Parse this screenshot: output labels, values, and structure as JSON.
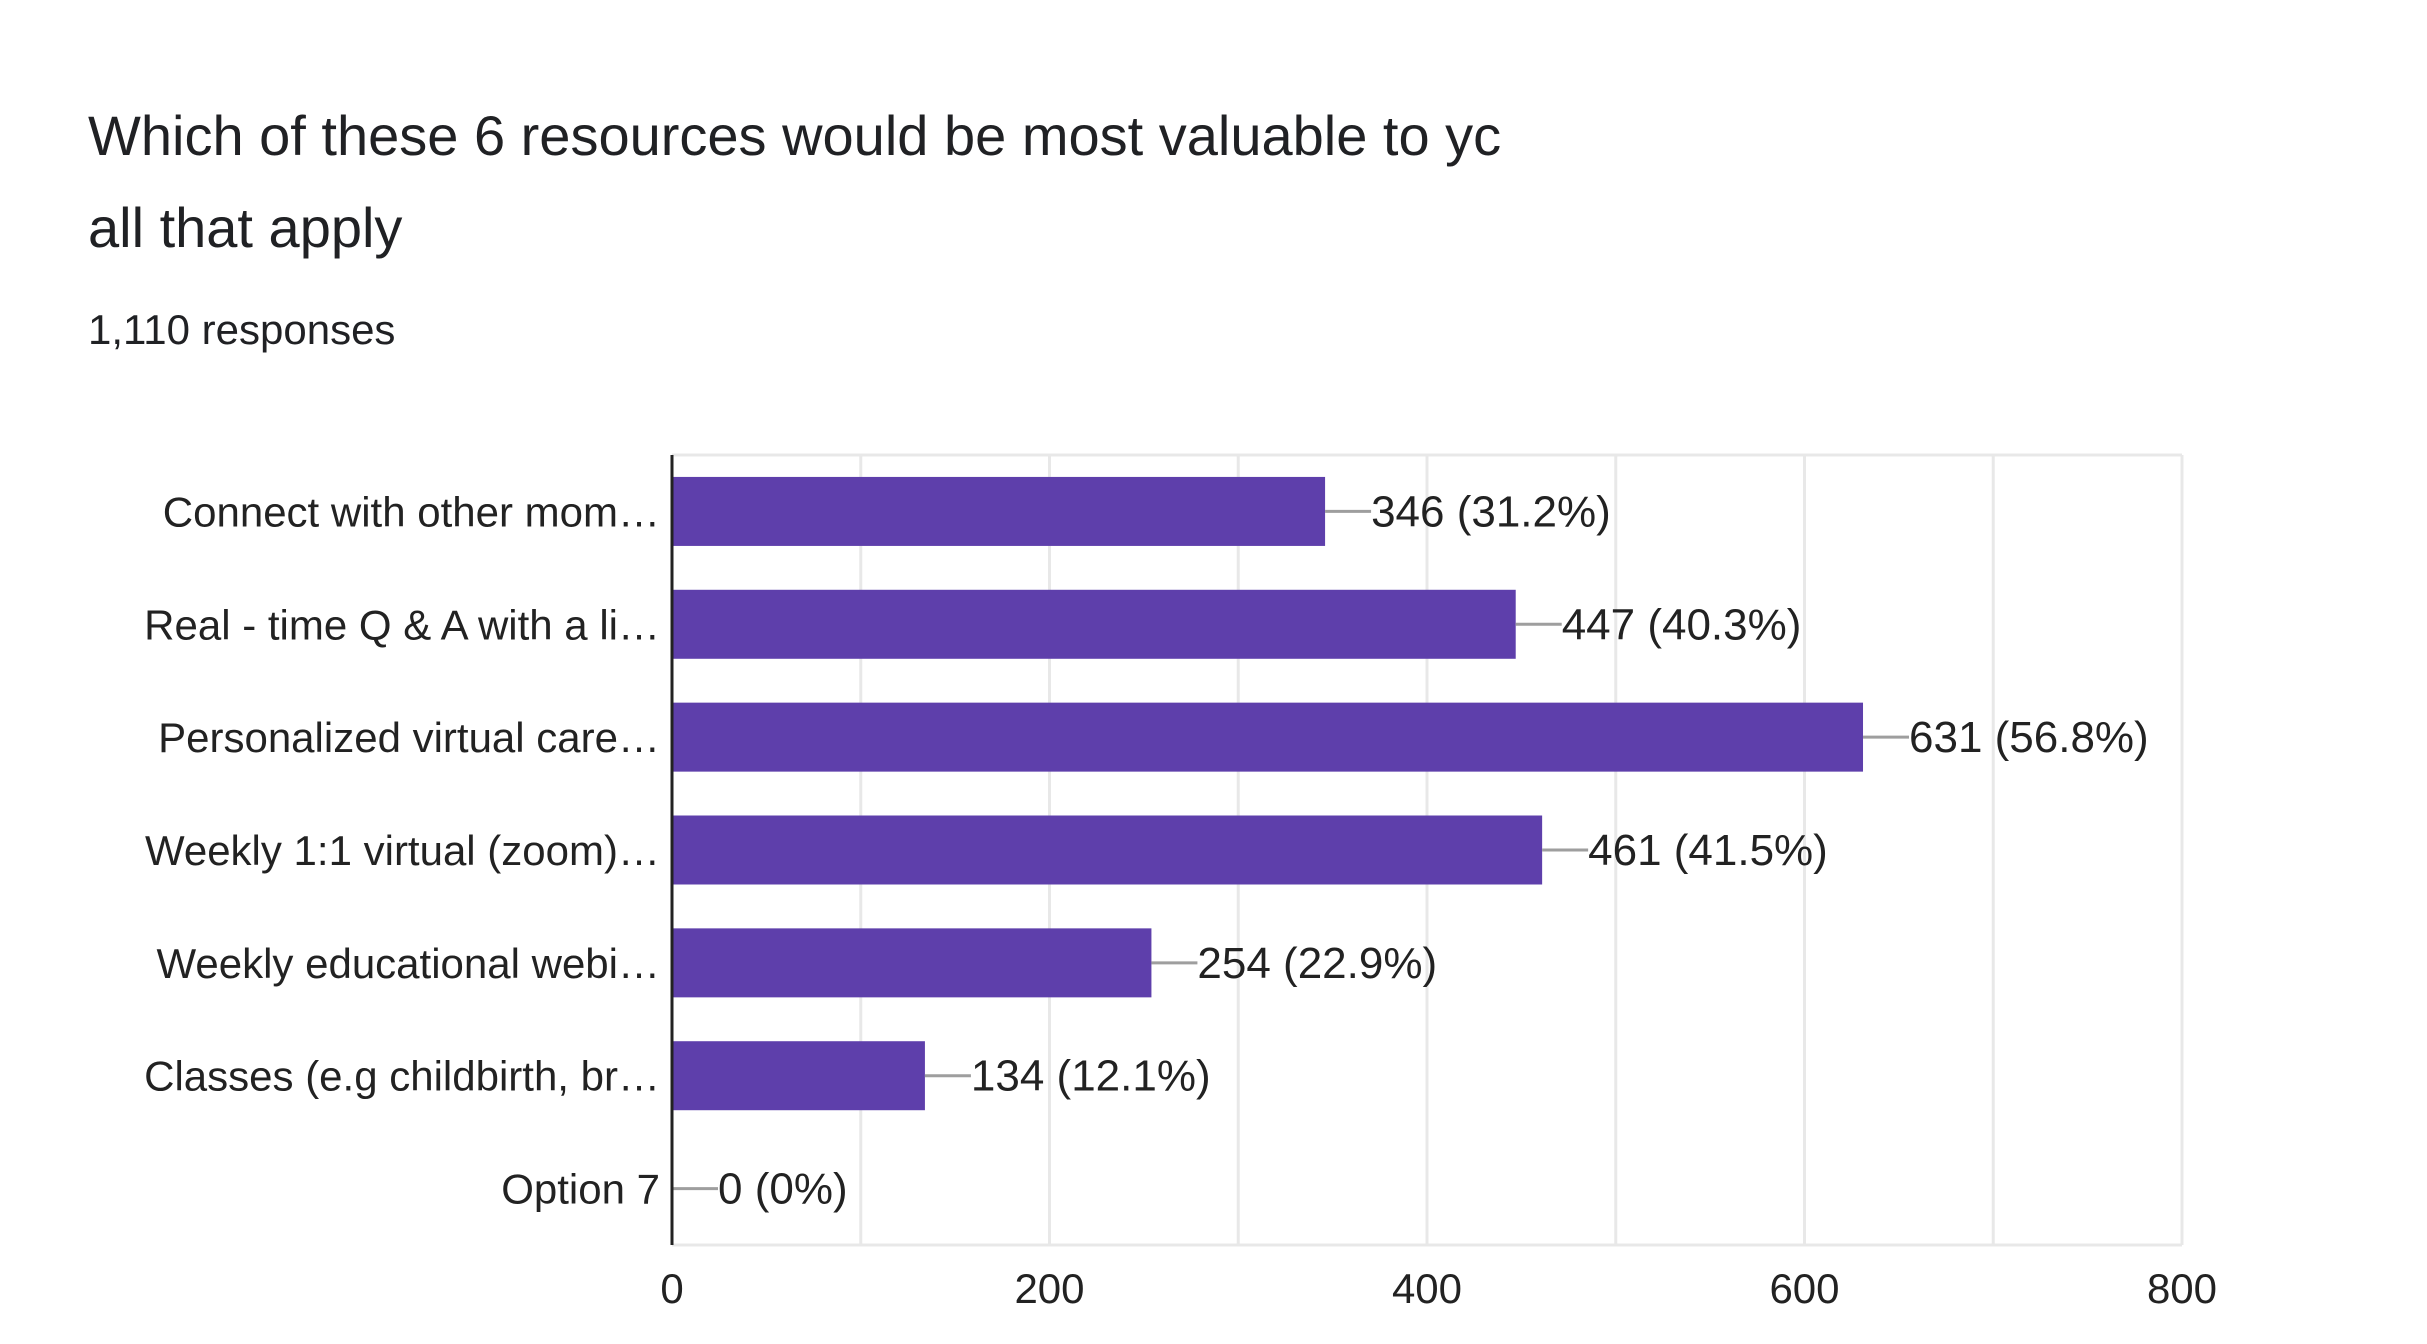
{
  "question": {
    "title_line1": "Which of these 6 resources would be most valuable to yc",
    "title_line2": "all that apply",
    "responses_text": "1,110 responses"
  },
  "colors": {
    "bar": "#5e3fab",
    "grid": "#e8e8e8",
    "axis": "#222222",
    "text": "#222222",
    "leader": "#9e9e9e"
  },
  "chart_data": {
    "type": "bar",
    "orientation": "horizontal",
    "title": "Which of these 6 resources would be most valuable to yc all that apply",
    "subtitle": "1,110 responses",
    "categories": [
      "Connect with other mom…",
      "Real - time Q & A with a li…",
      "Personalized virtual care…",
      "Weekly 1:1 virtual (zoom)…",
      "Weekly educational webi…",
      "Classes (e.g childbirth, br…",
      "Option 7"
    ],
    "values": [
      346,
      447,
      631,
      461,
      254,
      134,
      0
    ],
    "data_labels": [
      "346 (31.2%)",
      "447 (40.3%)",
      "631 (56.8%)",
      "461 (41.5%)",
      "254 (22.9%)",
      "134 (12.1%)",
      "0 (0%)"
    ],
    "xlim": [
      0,
      800
    ],
    "major_ticks": [
      0,
      200,
      400,
      600,
      800
    ],
    "tick_labels": [
      "0",
      "200",
      "400",
      "600",
      "800"
    ],
    "minor_gridlines": [
      100,
      300,
      500,
      700
    ],
    "grid": true,
    "xlabel": "",
    "ylabel": ""
  }
}
